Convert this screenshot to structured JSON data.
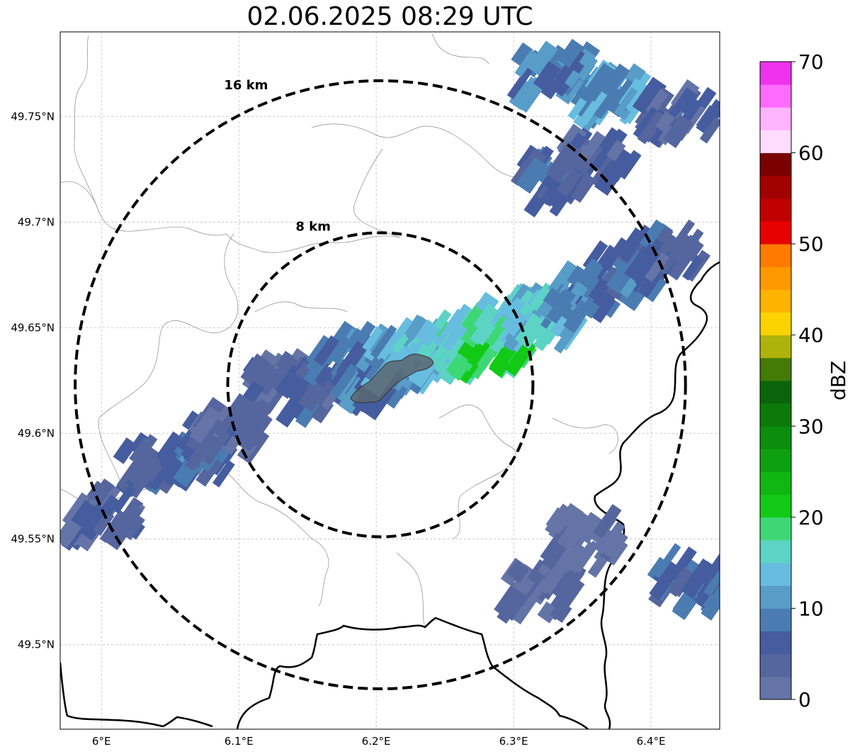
{
  "title": "02.06.2025 08:29 UTC",
  "map": {
    "lon_range": [
      5.97,
      6.45
    ],
    "lat_range": [
      49.46,
      49.79
    ],
    "radar_center": {
      "lon": 6.203,
      "lat": 49.623
    },
    "range_rings": [
      {
        "label": "8 km",
        "radius_km": 8
      },
      {
        "label": "16 km",
        "radius_km": 16
      }
    ],
    "lat_ticks": [
      {
        "value": 49.75,
        "label": "49.75°N"
      },
      {
        "value": 49.7,
        "label": "49.7°N"
      },
      {
        "value": 49.65,
        "label": "49.65°N"
      },
      {
        "value": 49.6,
        "label": "49.6°N"
      },
      {
        "value": 49.55,
        "label": "49.55°N"
      },
      {
        "value": 49.5,
        "label": "49.5°N"
      }
    ],
    "lon_ticks": [
      {
        "value": 6.0,
        "label": "6°E"
      },
      {
        "value": 6.1,
        "label": "6.1°E"
      },
      {
        "value": 6.2,
        "label": "6.2°E"
      },
      {
        "value": 6.3,
        "label": "6.3°E"
      },
      {
        "value": 6.4,
        "label": "6.4°E"
      }
    ],
    "gridlines": "dashed"
  },
  "colorbar": {
    "label": "dBZ",
    "range": [
      0,
      70
    ],
    "step": 2.5,
    "tick_labels": [
      "0",
      "10",
      "20",
      "30",
      "40",
      "50",
      "60",
      "70"
    ],
    "colors": [
      "#6474a6",
      "#55659e",
      "#455c9f",
      "#4a7cb1",
      "#589cc8",
      "#67bddf",
      "#5dd3c5",
      "#3dd875",
      "#12ca15",
      "#10b612",
      "#0fa010",
      "#0c8d0c",
      "#0b7a0b",
      "#0a650a",
      "#447a06",
      "#aeb20a",
      "#fbd300",
      "#feb300",
      "#fe9800",
      "#fe7a00",
      "#e60000",
      "#c00000",
      "#a10000",
      "#7a0000",
      "#ffdcff",
      "#ffb4ff",
      "#ff6bff",
      "#ee32ee"
    ]
  },
  "reflectivity_cells": [
    {
      "lon": 6.13,
      "lat": 49.625,
      "dbz": 4
    },
    {
      "lon": 6.16,
      "lat": 49.62,
      "dbz": 6
    },
    {
      "lon": 6.18,
      "lat": 49.635,
      "dbz": 8
    },
    {
      "lon": 6.2,
      "lat": 49.625,
      "dbz": 9
    },
    {
      "lon": 6.22,
      "lat": 49.635,
      "dbz": 12
    },
    {
      "lon": 6.24,
      "lat": 49.64,
      "dbz": 14
    },
    {
      "lon": 6.26,
      "lat": 49.645,
      "dbz": 16
    },
    {
      "lon": 6.28,
      "lat": 49.64,
      "dbz": 18
    },
    {
      "lon": 6.29,
      "lat": 49.645,
      "dbz": 20
    },
    {
      "lon": 6.3,
      "lat": 49.655,
      "dbz": 16
    },
    {
      "lon": 6.32,
      "lat": 49.655,
      "dbz": 14
    },
    {
      "lon": 6.35,
      "lat": 49.665,
      "dbz": 10
    },
    {
      "lon": 6.38,
      "lat": 49.675,
      "dbz": 8
    },
    {
      "lon": 6.41,
      "lat": 49.685,
      "dbz": 6
    },
    {
      "lon": 6.04,
      "lat": 49.585,
      "dbz": 6
    },
    {
      "lon": 6.07,
      "lat": 49.59,
      "dbz": 8
    },
    {
      "lon": 6.09,
      "lat": 49.6,
      "dbz": 5
    },
    {
      "lon": 6.0,
      "lat": 49.56,
      "dbz": 4
    },
    {
      "lon": 6.33,
      "lat": 49.72,
      "dbz": 7
    },
    {
      "lon": 6.36,
      "lat": 49.73,
      "dbz": 5
    },
    {
      "lon": 6.33,
      "lat": 49.77,
      "dbz": 10
    },
    {
      "lon": 6.37,
      "lat": 49.76,
      "dbz": 12
    },
    {
      "lon": 6.42,
      "lat": 49.75,
      "dbz": 5
    },
    {
      "lon": 6.43,
      "lat": 49.53,
      "dbz": 7
    },
    {
      "lon": 6.32,
      "lat": 49.525,
      "dbz": 3
    },
    {
      "lon": 6.35,
      "lat": 49.55,
      "dbz": 2
    }
  ]
}
